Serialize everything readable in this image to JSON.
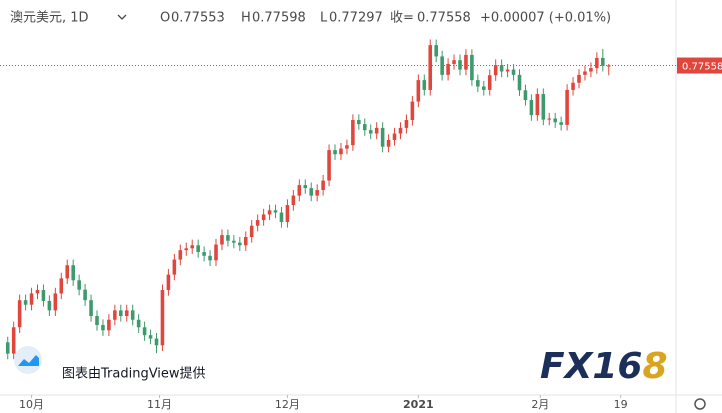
{
  "header": {
    "symbol": "澳元美元, 1D",
    "open_label": "O",
    "high_label": "H",
    "low_label": "L",
    "close_label": "收=",
    "change": "+0.00007 (+0.01%)"
  },
  "credit": "图表由TradingView提供",
  "logo": {
    "main": "FX16",
    "accent": "8"
  },
  "chart_data": {
    "type": "candlestick",
    "up_color": "#e0463c",
    "down_color": "#3c9a6c",
    "xlim": [
      -1.3,
      112.3
    ],
    "ylim": [
      0.688,
      0.793
    ],
    "xticks": [
      {
        "value": 4,
        "label": "10月"
      },
      {
        "value": 25.5,
        "label": "11月"
      },
      {
        "value": 47,
        "label": "12月"
      },
      {
        "value": 69,
        "label": "2021"
      },
      {
        "value": 89.5,
        "label": "2月"
      },
      {
        "value": 103,
        "label": "19"
      }
    ],
    "open": [
      0.702,
      0.699,
      0.706,
      0.7132,
      0.712,
      0.715,
      0.7159,
      0.713,
      0.7105,
      0.715,
      0.719,
      0.7225,
      0.7185,
      0.716,
      0.7132,
      0.709,
      0.7066,
      0.7052,
      0.708,
      0.7105,
      0.709,
      0.7105,
      0.708,
      0.706,
      0.7039,
      0.703,
      0.7012,
      0.7159,
      0.72,
      0.724,
      0.7265,
      0.727,
      0.7278,
      0.726,
      0.725,
      0.7238,
      0.728,
      0.7305,
      0.729,
      0.7285,
      0.7278,
      0.73,
      0.733,
      0.7345,
      0.736,
      0.7371,
      0.7365,
      0.734,
      0.7385,
      0.741,
      0.7438,
      0.743,
      0.741,
      0.7425,
      0.745,
      0.7531,
      0.752,
      0.7535,
      0.7544,
      0.7611,
      0.76,
      0.7584,
      0.7575,
      0.759,
      0.754,
      0.7558,
      0.7575,
      0.759,
      0.7611,
      0.766,
      0.7717,
      0.7691,
      0.781,
      0.778,
      0.7731,
      0.776,
      0.777,
      0.7745,
      0.7784,
      0.7717,
      0.77,
      0.7691,
      0.773,
      0.7757,
      0.774,
      0.7745,
      0.7731,
      0.769,
      0.7664,
      0.7624,
      0.768,
      0.7612,
      0.7615,
      0.7605,
      0.7598,
      0.7691,
      0.771,
      0.7731,
      0.774,
      0.7749,
      0.7776,
      0.77553
    ],
    "high": [
      0.7035,
      0.7075,
      0.7147,
      0.7147,
      0.7165,
      0.7174,
      0.7174,
      0.7145,
      0.7165,
      0.7205,
      0.724,
      0.724,
      0.72,
      0.7175,
      0.7147,
      0.7105,
      0.7081,
      0.7095,
      0.712,
      0.712,
      0.712,
      0.712,
      0.7095,
      0.7075,
      0.7054,
      0.7045,
      0.7174,
      0.7215,
      0.7255,
      0.728,
      0.7285,
      0.7293,
      0.7293,
      0.7275,
      0.7265,
      0.7295,
      0.732,
      0.732,
      0.7305,
      0.73,
      0.7315,
      0.7345,
      0.736,
      0.7375,
      0.7386,
      0.7386,
      0.738,
      0.74,
      0.7425,
      0.7453,
      0.7453,
      0.7445,
      0.744,
      0.7465,
      0.7546,
      0.7546,
      0.755,
      0.7559,
      0.7626,
      0.7626,
      0.7615,
      0.7599,
      0.7605,
      0.7605,
      0.7573,
      0.759,
      0.7605,
      0.7626,
      0.7675,
      0.7732,
      0.7732,
      0.7825,
      0.7825,
      0.7795,
      0.7775,
      0.7785,
      0.7785,
      0.7799,
      0.7799,
      0.7732,
      0.7715,
      0.7745,
      0.7772,
      0.7772,
      0.776,
      0.776,
      0.7746,
      0.7705,
      0.7679,
      0.7695,
      0.7695,
      0.763,
      0.763,
      0.762,
      0.7706,
      0.7725,
      0.7746,
      0.7755,
      0.7764,
      0.7791,
      0.78,
      0.77598
    ],
    "low": [
      0.6975,
      0.6975,
      0.7045,
      0.7105,
      0.7105,
      0.7135,
      0.7115,
      0.709,
      0.709,
      0.7135,
      0.7175,
      0.717,
      0.7145,
      0.7117,
      0.7075,
      0.7051,
      0.7037,
      0.7037,
      0.7065,
      0.7075,
      0.7075,
      0.7065,
      0.7045,
      0.7024,
      0.7015,
      0.6991,
      0.6997,
      0.7144,
      0.7185,
      0.7225,
      0.725,
      0.7255,
      0.7245,
      0.7235,
      0.7223,
      0.7223,
      0.7265,
      0.7275,
      0.727,
      0.7263,
      0.7263,
      0.7285,
      0.7315,
      0.733,
      0.7345,
      0.735,
      0.7325,
      0.7325,
      0.737,
      0.7395,
      0.7415,
      0.7395,
      0.7395,
      0.741,
      0.7435,
      0.7505,
      0.7505,
      0.752,
      0.7529,
      0.7585,
      0.7569,
      0.756,
      0.756,
      0.7525,
      0.7525,
      0.7543,
      0.756,
      0.7575,
      0.7596,
      0.7645,
      0.7676,
      0.7676,
      0.7765,
      0.7716,
      0.7716,
      0.7745,
      0.773,
      0.773,
      0.7702,
      0.7685,
      0.7676,
      0.7676,
      0.7715,
      0.7725,
      0.7725,
      0.7716,
      0.7675,
      0.7649,
      0.7609,
      0.7609,
      0.7597,
      0.7597,
      0.759,
      0.7583,
      0.7583,
      0.7676,
      0.7695,
      0.7716,
      0.7725,
      0.7734,
      0.774,
      0.77297
    ],
    "close": [
      0.699,
      0.706,
      0.7132,
      0.712,
      0.715,
      0.7159,
      0.713,
      0.7105,
      0.715,
      0.719,
      0.7225,
      0.7185,
      0.716,
      0.7132,
      0.709,
      0.7066,
      0.7052,
      0.708,
      0.7105,
      0.709,
      0.7105,
      0.708,
      0.706,
      0.7039,
      0.703,
      0.7012,
      0.7159,
      0.72,
      0.724,
      0.7265,
      0.727,
      0.7278,
      0.726,
      0.725,
      0.7238,
      0.728,
      0.7305,
      0.729,
      0.7285,
      0.7278,
      0.73,
      0.733,
      0.7345,
      0.736,
      0.7371,
      0.7365,
      0.734,
      0.7385,
      0.741,
      0.7438,
      0.743,
      0.741,
      0.7425,
      0.745,
      0.7531,
      0.752,
      0.7535,
      0.7544,
      0.7611,
      0.76,
      0.7584,
      0.7575,
      0.759,
      0.754,
      0.7558,
      0.7575,
      0.759,
      0.7611,
      0.766,
      0.7717,
      0.7691,
      0.781,
      0.778,
      0.7731,
      0.776,
      0.777,
      0.7745,
      0.7784,
      0.7717,
      0.77,
      0.7691,
      0.773,
      0.7757,
      0.774,
      0.7745,
      0.7731,
      0.769,
      0.7664,
      0.7624,
      0.768,
      0.7612,
      0.7615,
      0.7605,
      0.7598,
      0.7691,
      0.771,
      0.7731,
      0.774,
      0.7749,
      0.7776,
      0.77551,
      0.77558
    ]
  }
}
